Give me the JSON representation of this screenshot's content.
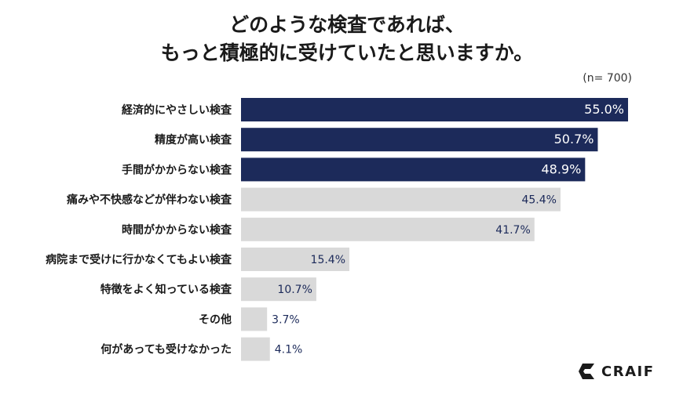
{
  "title_line1": "どのような検査であれば、",
  "title_line2": "もっと積極的に受けていたと思いますか。",
  "note": "(n= 700)",
  "logo_text": "CRAIF",
  "colors": {
    "highlight": "#1c2a5a",
    "normal": "#d9d9d9",
    "highlight_text": "#ffffff",
    "normal_text": "#1c2a5a"
  },
  "chart_data": {
    "type": "bar",
    "orientation": "horizontal",
    "categories": [
      "経済的にやさしい検査",
      "精度が高い検査",
      "手間がかからない検査",
      "痛みや不快感などが伴わない検査",
      "時間がかからない検査",
      "病院まで受けに行かなくてもよい検査",
      "特徴をよく知っている検査",
      "その他",
      "何があっても受けなかった"
    ],
    "values": [
      55.0,
      50.7,
      48.9,
      45.4,
      41.7,
      15.4,
      10.7,
      3.7,
      4.1
    ],
    "value_labels": [
      "55.0%",
      "50.7%",
      "48.9%",
      "45.4%",
      "41.7%",
      "15.4%",
      "10.7%",
      "3.7%",
      "4.1%"
    ],
    "highlighted": [
      true,
      true,
      true,
      false,
      false,
      false,
      false,
      false,
      false
    ],
    "xlim": [
      0,
      55.0
    ],
    "unit": "%"
  }
}
